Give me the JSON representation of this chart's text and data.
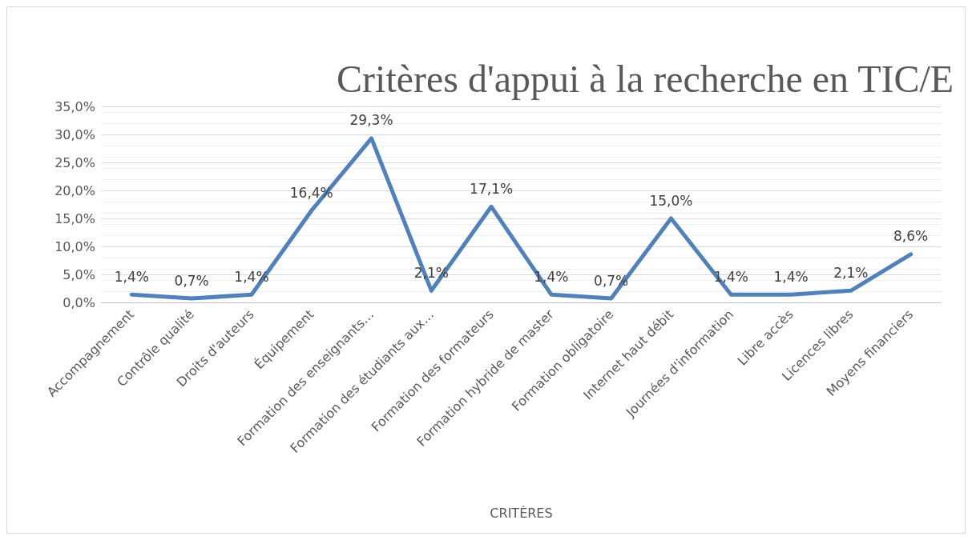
{
  "chart_data": {
    "type": "line",
    "title": "Critères d'appui à la recherche en TIC/E",
    "xlabel": "CRITÈRES",
    "categories": [
      "Accompagnement",
      "Contrôle qualité",
      "Droits d'auteurs",
      "Équipement",
      "Formation des enseignants…",
      "Formation des étudiants aux…",
      "Formation des formateurs",
      "Formation hybride de master",
      "Formation obligatoire",
      "Internet haut débit",
      "Journées d'information",
      "Libre accès",
      "Licences libres",
      "Moyens financiers"
    ],
    "series": [
      {
        "color": "#4f81bd",
        "values": [
          1.4,
          0.7,
          1.4,
          16.4,
          29.3,
          2.1,
          17.1,
          1.4,
          0.7,
          15.0,
          1.4,
          1.4,
          2.1,
          8.6
        ],
        "value_labels": [
          "1,4%",
          "0,7%",
          "1,4%",
          "16,4%",
          "29,3%",
          "2,1%",
          "17,1%",
          "1,4%",
          "0,7%",
          "15,0%",
          "1,4%",
          "1,4%",
          "2,1%",
          "8,6%"
        ]
      }
    ],
    "ylim": [
      0,
      35
    ],
    "yticks": [
      {
        "value": 0,
        "label": "0,0%"
      },
      {
        "value": 5,
        "label": "5,0%"
      },
      {
        "value": 10,
        "label": "10,0%"
      },
      {
        "value": 15,
        "label": "15,0%"
      },
      {
        "value": 20,
        "label": "20,0%"
      },
      {
        "value": 25,
        "label": "25,0%"
      },
      {
        "value": 30,
        "label": "30,0%"
      },
      {
        "value": 35,
        "label": "35,0%"
      }
    ],
    "grid": "y",
    "marker": "none",
    "line_style": "solid"
  }
}
